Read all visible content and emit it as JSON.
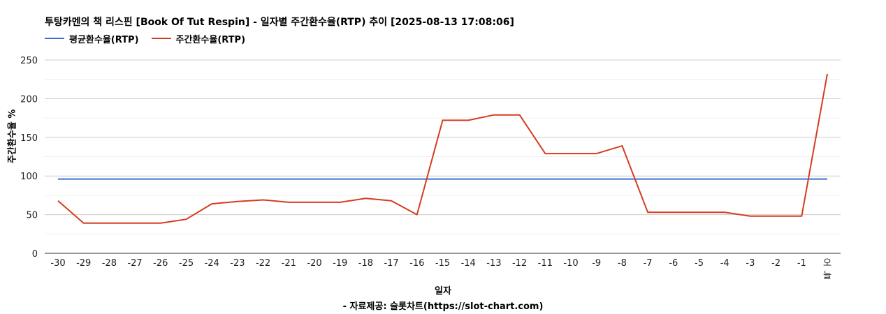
{
  "chart_data": {
    "type": "line",
    "title": "투탕카멘의 책 리스핀 [Book Of Tut Respin] - 일자별 주간환수율(RTP) 추이 [2025-08-13 17:08:06]",
    "xlabel": "일자",
    "ylabel": "주간환수율 %",
    "source": "- 자료제공: 슬롯차트(https://slot-chart.com)",
    "ylim": [
      0,
      250
    ],
    "yticks": [
      0,
      50,
      100,
      150,
      200,
      250
    ],
    "grid": true,
    "legend_position": "top-left",
    "categories": [
      "-30",
      "-29",
      "-28",
      "-27",
      "-26",
      "-25",
      "-24",
      "-23",
      "-22",
      "-21",
      "-20",
      "-19",
      "-18",
      "-17",
      "-16",
      "-15",
      "-14",
      "-13",
      "-12",
      "-11",
      "-10",
      "-9",
      "-8",
      "-7",
      "-6",
      "-5",
      "-4",
      "-3",
      "-2",
      "-1",
      "오늘"
    ],
    "series": [
      {
        "name": "평균환수율(RTP)",
        "color": "#3a6fd1",
        "values": [
          96,
          96,
          96,
          96,
          96,
          96,
          96,
          96,
          96,
          96,
          96,
          96,
          96,
          96,
          96,
          96,
          96,
          96,
          96,
          96,
          96,
          96,
          96,
          96,
          96,
          96,
          96,
          96,
          96,
          96,
          96
        ]
      },
      {
        "name": "주간환수율(RTP)",
        "color": "#d63c1f",
        "values": [
          68,
          39,
          39,
          39,
          39,
          44,
          64,
          67,
          69,
          66,
          66,
          66,
          71,
          68,
          50,
          172,
          172,
          179,
          179,
          129,
          129,
          129,
          139,
          53,
          53,
          53,
          53,
          48,
          48,
          48,
          232
        ]
      }
    ]
  }
}
